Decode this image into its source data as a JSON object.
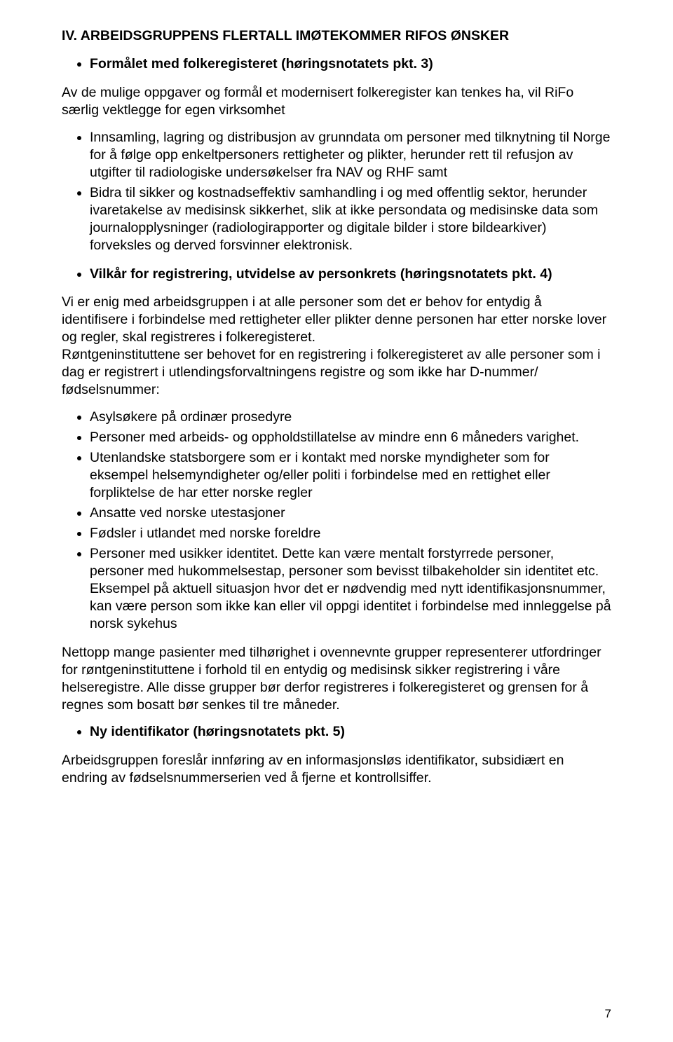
{
  "heading1": "IV. ARBEIDSGRUPPENS FLERTALL IMØTEKOMMER RIFOS ØNSKER",
  "list1": [
    {
      "text": "Formålet med folkeregisteret (høringsnotatets pkt. 3)",
      "bold": true
    }
  ],
  "intro1": "Av de mulige oppgaver og formål et modernisert folkeregister kan tenkes ha, vil RiFo særlig vektlegge for egen virksomhet",
  "list2": [
    {
      "text": "Innsamling, lagring og distribusjon av grunndata om personer med tilknytning til Norge for å følge opp enkeltpersoners rettigheter og plikter, herunder rett til refusjon av utgifter til radiologiske undersøkelser fra NAV og RHF samt",
      "bold": false
    },
    {
      "text": "Bidra til sikker og kostnadseffektiv samhandling i og med offentlig sektor, herunder ivaretakelse av medisinsk sikkerhet, slik at ikke persondata og medisinske data som journalopplysninger (radiologirapporter og digitale bilder i store bildearkiver) forveksles og derved forsvinner elektronisk.",
      "bold": false
    }
  ],
  "list3": [
    {
      "text": "Vilkår for registrering, utvidelse av personkrets (høringsnotatets pkt. 4)",
      "bold": true
    }
  ],
  "para1": "Vi er enig med arbeidsgruppen i at alle personer som det er behov for entydig å identifisere i forbindelse med rettigheter eller plikter denne personen har etter norske lover og regler, skal registreres i folkeregisteret.",
  "para2": "Røntgeninstituttene ser behovet for en registrering i folkeregisteret av alle personer som i dag er registrert i utlendingsforvaltningens registre og som ikke har D-nummer/ fødselsnummer:",
  "list4": [
    {
      "text": "Asylsøkere på ordinær prosedyre",
      "bold": false
    },
    {
      "text": "Personer med arbeids- og oppholdstillatelse av mindre enn 6 måneders varighet.",
      "bold": false,
      "justify": true
    },
    {
      "text": "Utenlandske statsborgere som er i kontakt med norske myndigheter som for eksempel helsemyndigheter og/eller politi i forbindelse med en rettighet eller forpliktelse de har etter norske regler",
      "bold": false
    },
    {
      "text": "Ansatte ved norske utestasjoner",
      "bold": false
    },
    {
      "text": "Fødsler i utlandet med norske foreldre",
      "bold": false
    },
    {
      "text": "Personer med usikker identitet. Dette kan være mentalt forstyrrede personer, personer med hukommelsestap, personer som bevisst tilbakeholder sin identitet etc. Eksempel på aktuell situasjon hvor det er nødvendig med nytt identifikasjonsnummer, kan være person som ikke kan eller vil oppgi identitet i forbindelse med innleggelse på norsk sykehus",
      "bold": false
    }
  ],
  "para3": "Nettopp mange pasienter med tilhørighet i ovennevnte grupper representerer utfordringer for røntgeninstituttene i forhold til en entydig og medisinsk sikker registrering i våre helseregistre. Alle disse grupper bør derfor registreres i folkeregisteret og grensen for å regnes som bosatt bør senkes til tre måneder.",
  "list5": [
    {
      "text": "Ny identifikator (høringsnotatets pkt. 5)",
      "bold": true
    }
  ],
  "para4": "Arbeidsgruppen foreslår innføring av en informasjonsløs identifikator, subsidiært en endring av fødselsnummerserien ved å fjerne et kontrollsiffer.",
  "pageNumber": "7"
}
